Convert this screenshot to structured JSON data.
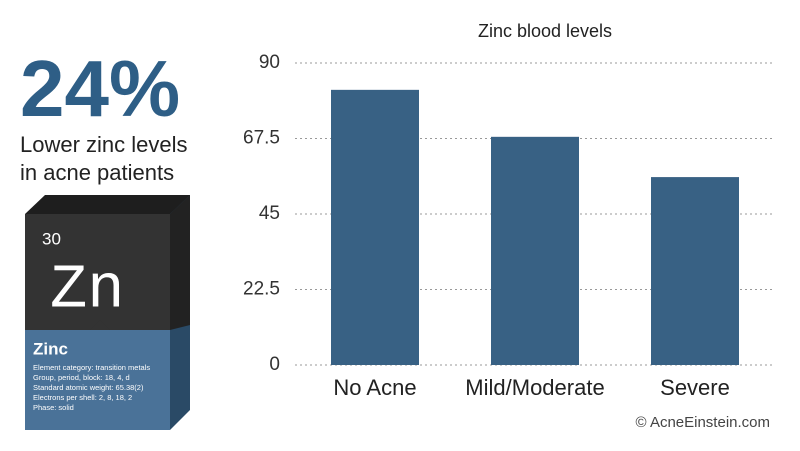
{
  "chart_data": {
    "type": "bar",
    "title": "Zinc blood levels",
    "categories": [
      "No Acne",
      "Mild/Moderate",
      "Severe"
    ],
    "values": [
      82,
      68,
      56
    ],
    "color": "#386184",
    "ylim": [
      0,
      90
    ],
    "yticks": [
      0,
      22.5,
      45,
      67.5,
      90
    ],
    "grid": true
  },
  "headline": {
    "stat": "24%",
    "lines": [
      "Lower zinc levels",
      "in acne patients"
    ]
  },
  "element_box": {
    "number": "30",
    "symbol": "Zn",
    "name": "Zinc",
    "details": [
      "Element category: transition metals",
      "Group, period, block: 18, 4, d",
      "Standard atomic weight: 65.38(2)",
      "Electrons per shell: 2, 8, 18, 2",
      "Phase: solid"
    ]
  },
  "credit": "© AcneEinstein.com"
}
